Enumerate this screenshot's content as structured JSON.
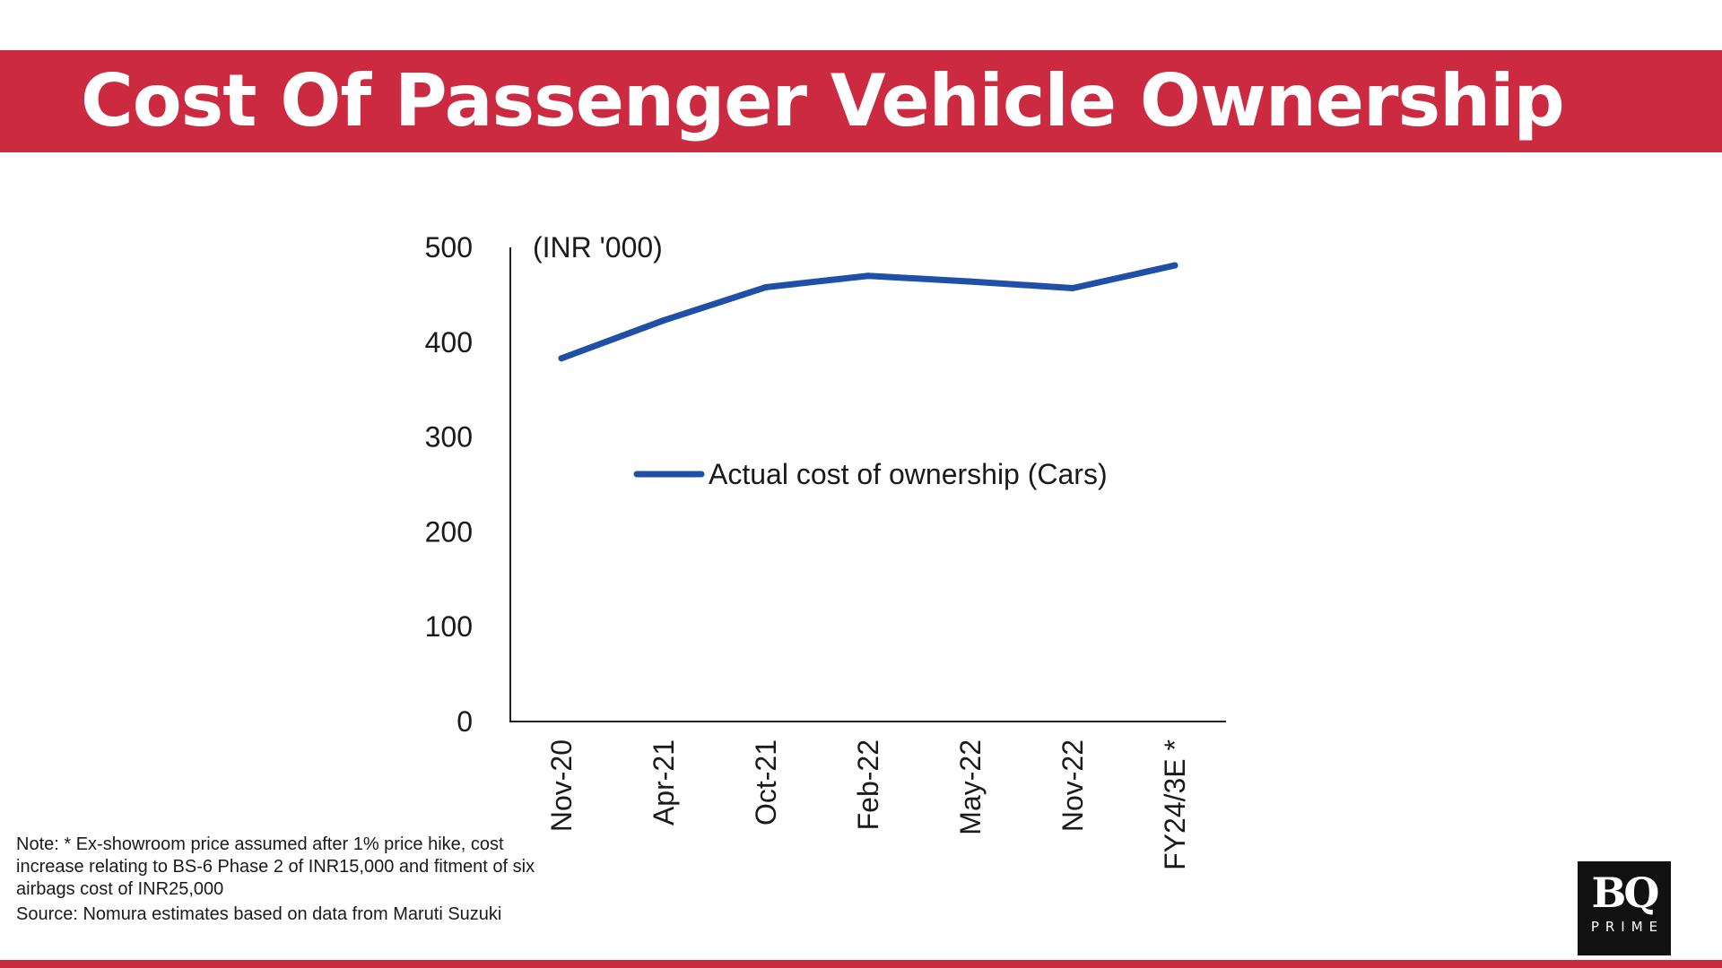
{
  "header": {
    "title": "Cost Of Passenger Vehicle Ownership"
  },
  "chart_data": {
    "type": "line",
    "title": "",
    "unit_label": "(INR '000)",
    "xlabel": "",
    "ylabel": "",
    "ylim": [
      0,
      500
    ],
    "yticks": [
      0,
      100,
      200,
      300,
      400,
      500
    ],
    "grid": false,
    "legend_position": "center",
    "categories": [
      "Nov-20",
      "Apr-21",
      "Oct-21",
      "Feb-22",
      "May-22",
      "Nov-22",
      "FY24/3E *"
    ],
    "series": [
      {
        "name": "Actual cost of ownership (Cars)",
        "color": "#1f4fa6",
        "values": [
          383,
          423,
          458,
          470,
          464,
          457,
          481
        ]
      }
    ]
  },
  "notes": {
    "note": "Note: * Ex-showroom price assumed after 1% price hike, cost increase relating to BS-6 Phase 2 of INR15,000 and fitment of six airbags cost of INR25,000",
    "source": "Source: Nomura estimates based on data from Maruti Suzuki"
  },
  "logo": {
    "mark": "BQ",
    "sub": "PRIME"
  },
  "colors": {
    "brand_red": "#cc2a40",
    "line_blue": "#1f4fa6",
    "axis": "#222222"
  }
}
